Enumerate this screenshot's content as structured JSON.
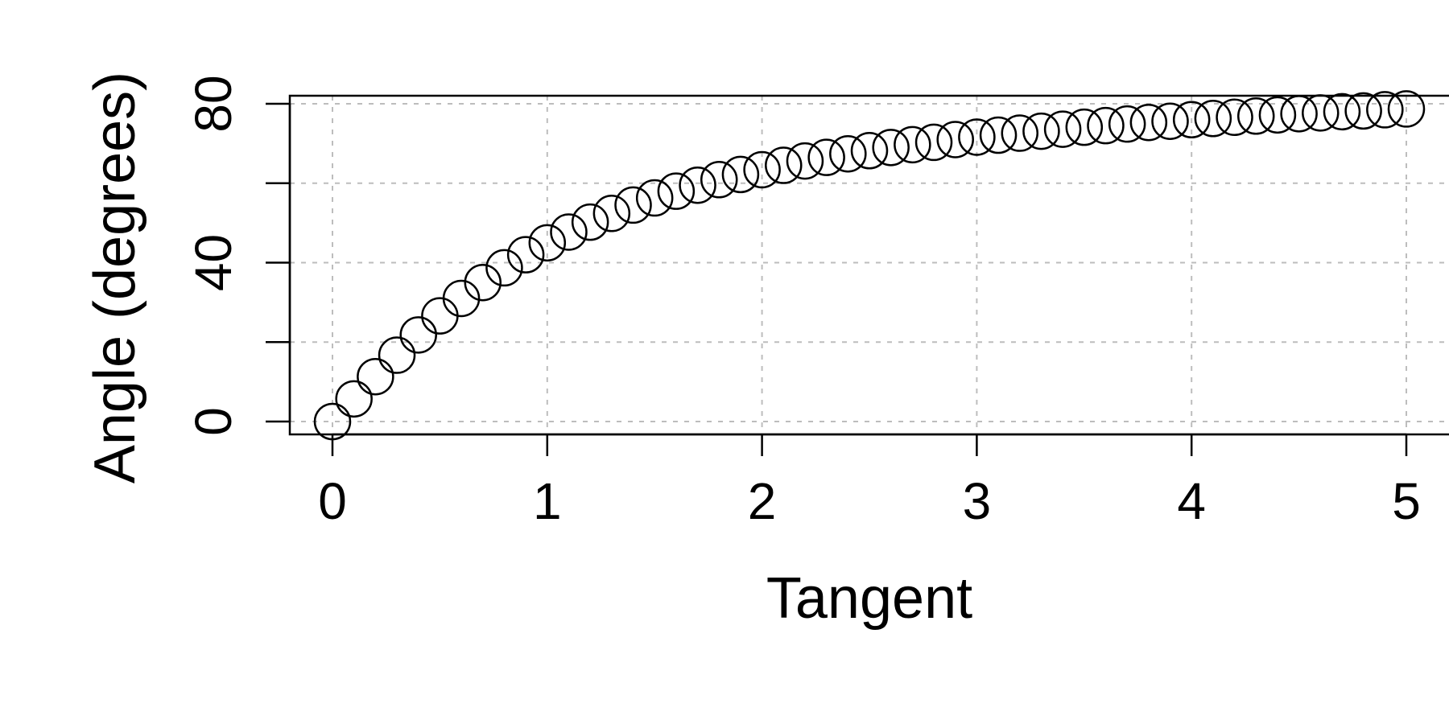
{
  "chart_data": {
    "type": "scatter",
    "title": "",
    "xlabel": "Tangent",
    "ylabel": "Angle (degrees)",
    "xlim": [
      0,
      5
    ],
    "ylim": [
      0,
      80
    ],
    "x_ticks": [
      0,
      1,
      2,
      3,
      4,
      5
    ],
    "y_ticks": [
      0,
      20,
      40,
      60,
      80
    ],
    "y_tick_labels": [
      "0",
      "",
      "40",
      "",
      "80"
    ],
    "x_tick_labels": [
      "0",
      "1",
      "2",
      "3",
      "4",
      "5"
    ],
    "grid": true,
    "marker": "open-circle",
    "series": [
      {
        "x": [
          0.0,
          0.1,
          0.2,
          0.3,
          0.4,
          0.5,
          0.6,
          0.7,
          0.8,
          0.9,
          1.0,
          1.1,
          1.2,
          1.3,
          1.4,
          1.5,
          1.6,
          1.7,
          1.8,
          1.9,
          2.0,
          2.1,
          2.2,
          2.3,
          2.4,
          2.5,
          2.6,
          2.7,
          2.8,
          2.9,
          3.0,
          3.1,
          3.2,
          3.3,
          3.4,
          3.5,
          3.6,
          3.7,
          3.8,
          3.9,
          4.0,
          4.1,
          4.2,
          4.3,
          4.4,
          4.5,
          4.6,
          4.7,
          4.8,
          4.9,
          5.0
        ],
        "y": [
          0.0,
          5.7,
          11.3,
          16.7,
          21.8,
          26.6,
          31.0,
          35.0,
          38.7,
          42.0,
          45.0,
          47.7,
          50.2,
          52.4,
          54.5,
          56.3,
          58.0,
          59.5,
          60.9,
          62.2,
          63.4,
          64.5,
          65.6,
          66.5,
          67.4,
          68.2,
          69.0,
          69.7,
          70.3,
          71.0,
          71.6,
          72.1,
          72.6,
          73.1,
          73.6,
          74.1,
          74.5,
          74.9,
          75.3,
          75.6,
          76.0,
          76.3,
          76.6,
          76.9,
          77.2,
          77.5,
          77.7,
          78.0,
          78.2,
          78.5,
          78.7
        ]
      }
    ]
  }
}
